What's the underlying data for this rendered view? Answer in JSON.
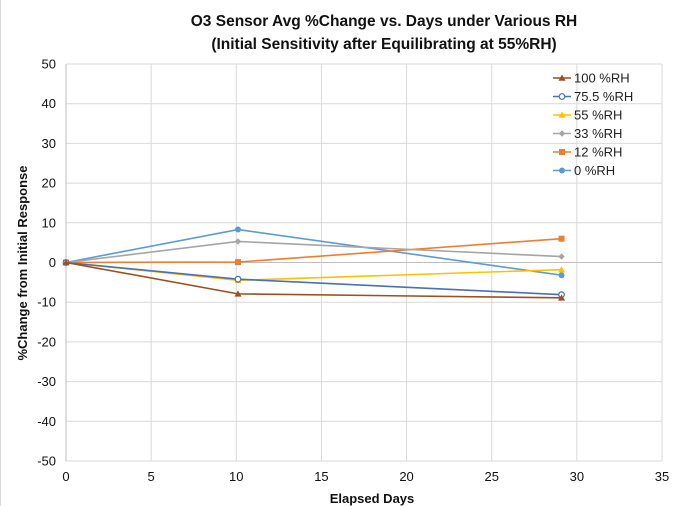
{
  "chart_data": {
    "type": "line",
    "title": "O3 Sensor Avg %Change vs. Days under Various RH",
    "subtitle": "(Initial Sensitivity after Equilibrating at 55%RH)",
    "xlabel": "Elapsed Days",
    "ylabel": "%Change from Initial Response",
    "xlim": [
      0,
      35
    ],
    "ylim": [
      -50,
      50
    ],
    "xticks": [
      0,
      5,
      10,
      15,
      20,
      25,
      30,
      35
    ],
    "yticks": [
      50,
      40,
      30,
      20,
      10,
      0,
      -10,
      -20,
      -30,
      -40,
      -50
    ],
    "grid": true,
    "legend_position": "top-right",
    "series": [
      {
        "name": "100 %RH",
        "color": "#9c4f1f",
        "marker": "triangle",
        "x": [
          0,
          10.1,
          29.1
        ],
        "y": [
          0,
          -7.9,
          -8.9
        ]
      },
      {
        "name": "75.5 %RH",
        "color": "#4a70b8",
        "marker": "circle-open",
        "x": [
          0,
          10.1,
          29.1
        ],
        "y": [
          0,
          -4.2,
          -8.1
        ]
      },
      {
        "name": "55 %RH",
        "color": "#ffc000",
        "marker": "triangle",
        "x": [
          0,
          10.1,
          29.1
        ],
        "y": [
          0,
          -4.5,
          -1.8
        ]
      },
      {
        "name": "33 %RH",
        "color": "#a5a5a5",
        "marker": "diamond",
        "x": [
          0,
          10.1,
          29.1
        ],
        "y": [
          0,
          5.3,
          1.5
        ]
      },
      {
        "name": "12 %RH",
        "color": "#ed7d31",
        "marker": "square",
        "x": [
          0,
          10.1,
          29.1
        ],
        "y": [
          0,
          0.1,
          6.0
        ]
      },
      {
        "name": "0 %RH",
        "color": "#5b9bd5",
        "marker": "circle",
        "x": [
          0,
          10.1,
          29.1
        ],
        "y": [
          0,
          8.3,
          -3.2
        ]
      }
    ]
  }
}
